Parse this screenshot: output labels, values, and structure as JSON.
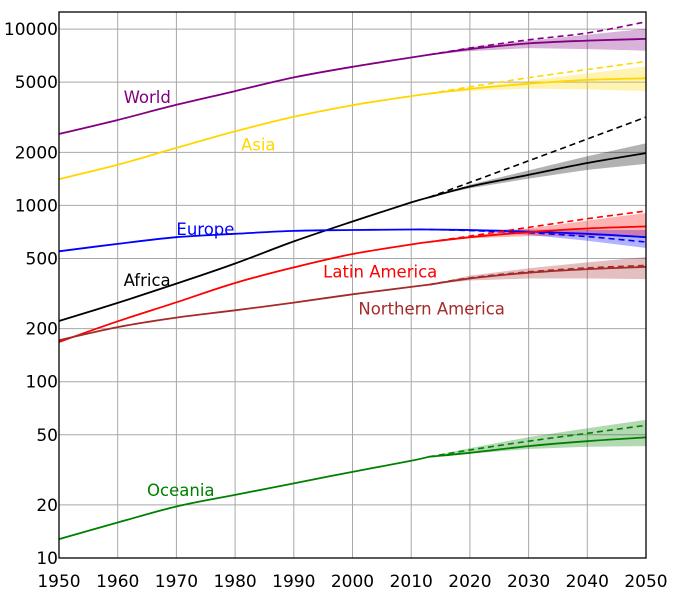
{
  "chart_data": {
    "type": "line",
    "title": "",
    "xlabel": "",
    "ylabel": "",
    "yscale": "log",
    "xlim": [
      1950,
      2050
    ],
    "ylim": [
      10,
      12500
    ],
    "grid": true,
    "legend": "inline labels",
    "x_ticks": [
      1950,
      1960,
      1970,
      1980,
      1990,
      2000,
      2010,
      2020,
      2030,
      2040,
      2050
    ],
    "y_ticks": [
      10,
      20,
      50,
      100,
      200,
      500,
      1000,
      2000,
      5000,
      10000
    ],
    "projection_start": 2013,
    "series": [
      {
        "name": "World",
        "label": "World",
        "color": "#800080",
        "label_at": [
          1961,
          3800
        ],
        "historical": {
          "x": [
            1950,
            1960,
            1970,
            1980,
            1990,
            2000,
            2010,
            2013
          ],
          "y": [
            2540,
            3050,
            3720,
            4450,
            5320,
            6110,
            6900,
            7150
          ]
        },
        "projection": {
          "x": [
            2013,
            2020,
            2030,
            2040,
            2050
          ],
          "y": [
            7150,
            7700,
            8300,
            8600,
            8800
          ]
        },
        "projection_high": {
          "x": [
            2013,
            2020,
            2030,
            2040,
            2050
          ],
          "y": [
            7150,
            7800,
            8700,
            9500,
            11000
          ]
        },
        "band_upper": {
          "x": [
            2013,
            2020,
            2030,
            2040,
            2050
          ],
          "y": [
            7150,
            7900,
            8600,
            9300,
            10050
          ]
        },
        "band_lower": {
          "x": [
            2013,
            2020,
            2030,
            2040,
            2050
          ],
          "y": [
            7150,
            7500,
            7800,
            7700,
            7540
          ]
        }
      },
      {
        "name": "Asia",
        "label": "Asia",
        "color": "#ffd700",
        "label_at": [
          1981,
          2050
        ],
        "historical": {
          "x": [
            1950,
            1960,
            1970,
            1980,
            1990,
            2000,
            2010,
            2013
          ],
          "y": [
            1410,
            1700,
            2120,
            2630,
            3180,
            3700,
            4170,
            4300
          ]
        },
        "projection": {
          "x": [
            2013,
            2020,
            2030,
            2040,
            2050
          ],
          "y": [
            4300,
            4580,
            4900,
            5150,
            5260
          ]
        },
        "projection_high": {
          "x": [
            2013,
            2020,
            2030,
            2040,
            2050
          ],
          "y": [
            4300,
            4700,
            5300,
            5900,
            6550
          ]
        },
        "band_upper": {
          "x": [
            2013,
            2020,
            2030,
            2040,
            2050
          ],
          "y": [
            4300,
            4650,
            5100,
            5600,
            6150
          ]
        },
        "band_lower": {
          "x": [
            2013,
            2020,
            2030,
            2040,
            2050
          ],
          "y": [
            4300,
            4450,
            4600,
            4550,
            4450
          ]
        }
      },
      {
        "name": "Africa",
        "label": "Africa",
        "color": "#000000",
        "label_at": [
          1961,
          350
        ],
        "historical": {
          "x": [
            1950,
            1960,
            1970,
            1980,
            1990,
            2000,
            2010,
            2013
          ],
          "y": [
            221,
            280,
            360,
            468,
            625,
            810,
            1040,
            1110
          ]
        },
        "projection": {
          "x": [
            2013,
            2020,
            2030,
            2040,
            2050
          ],
          "y": [
            1110,
            1280,
            1490,
            1740,
            1980
          ]
        },
        "projection_high": {
          "x": [
            2013,
            2020,
            2030,
            2040,
            2050
          ],
          "y": [
            1110,
            1350,
            1790,
            2380,
            3170
          ]
        },
        "band_upper": {
          "x": [
            2013,
            2020,
            2030,
            2040,
            2050
          ],
          "y": [
            1110,
            1310,
            1580,
            1900,
            2250
          ]
        },
        "band_lower": {
          "x": [
            2013,
            2020,
            2030,
            2040,
            2050
          ],
          "y": [
            1110,
            1250,
            1420,
            1590,
            1720
          ]
        }
      },
      {
        "name": "Europe",
        "label": "Europe",
        "color": "#0000ff",
        "label_at": [
          1970,
          680
        ],
        "historical": {
          "x": [
            1950,
            1960,
            1970,
            1980,
            1990,
            2000,
            2010,
            2013
          ],
          "y": [
            549,
            605,
            660,
            690,
            717,
            725,
            730,
            730
          ]
        },
        "projection": {
          "x": [
            2013,
            2020,
            2030,
            2040,
            2050
          ],
          "y": [
            730,
            725,
            710,
            690,
            660
          ]
        },
        "projection_high": {
          "x": [
            2013,
            2020,
            2030,
            2040,
            2050
          ],
          "y": [
            730,
            720,
            700,
            665,
            620
          ]
        },
        "band_upper": {
          "x": [
            2013,
            2020,
            2030,
            2040,
            2050
          ],
          "y": [
            730,
            730,
            730,
            728,
            725
          ]
        },
        "band_lower": {
          "x": [
            2013,
            2020,
            2030,
            2040,
            2050
          ],
          "y": [
            730,
            715,
            680,
            630,
            573
          ]
        }
      },
      {
        "name": "Latin America",
        "label": "Latin America",
        "color": "#ff0000",
        "label_at": [
          1995,
          390
        ],
        "historical": {
          "x": [
            1950,
            1960,
            1970,
            1980,
            1990,
            2000,
            2010,
            2013
          ],
          "y": [
            168,
            220,
            282,
            363,
            445,
            530,
            600,
            620
          ]
        },
        "projection": {
          "x": [
            2013,
            2020,
            2030,
            2040,
            2050
          ],
          "y": [
            620,
            660,
            705,
            740,
            760
          ]
        },
        "projection_high": {
          "x": [
            2013,
            2020,
            2030,
            2040,
            2050
          ],
          "y": [
            620,
            670,
            750,
            840,
            930
          ]
        },
        "band_upper": {
          "x": [
            2013,
            2020,
            2030,
            2040,
            2050
          ],
          "y": [
            620,
            670,
            740,
            820,
            905
          ]
        },
        "band_lower": {
          "x": [
            2013,
            2020,
            2030,
            2040,
            2050
          ],
          "y": [
            620,
            650,
            670,
            670,
            660
          ]
        }
      },
      {
        "name": "Northern America",
        "label": "Northern America",
        "color": "#a52a2a",
        "label_at": [
          2001,
          240
        ],
        "historical": {
          "x": [
            1950,
            1960,
            1970,
            1980,
            1990,
            2000,
            2010,
            2013
          ],
          "y": [
            172,
            204,
            231,
            254,
            281,
            313,
            345,
            355
          ]
        },
        "projection": {
          "x": [
            2013,
            2020,
            2030,
            2040,
            2050
          ],
          "y": [
            355,
            385,
            415,
            435,
            448
          ]
        },
        "projection_high": {
          "x": [
            2013,
            2020,
            2030,
            2040,
            2050
          ],
          "y": [
            355,
            388,
            420,
            442,
            457
          ]
        },
        "band_upper": {
          "x": [
            2013,
            2020,
            2030,
            2040,
            2050
          ],
          "y": [
            355,
            400,
            440,
            475,
            510
          ]
        },
        "band_lower": {
          "x": [
            2013,
            2020,
            2030,
            2040,
            2050
          ],
          "y": [
            355,
            375,
            385,
            385,
            382
          ]
        }
      },
      {
        "name": "Oceania",
        "label": "Oceania",
        "color": "#008000",
        "label_at": [
          1965,
          22.5
        ],
        "historical": {
          "x": [
            1950,
            1960,
            1970,
            1980,
            1990,
            2000,
            2010,
            2013
          ],
          "y": [
            12.8,
            15.9,
            19.6,
            22.8,
            26.5,
            30.8,
            35.6,
            37.5
          ]
        },
        "projection": {
          "x": [
            2013,
            2020,
            2030,
            2040,
            2050
          ],
          "y": [
            37.5,
            39.5,
            43.1,
            46,
            48.3
          ]
        },
        "projection_high": {
          "x": [
            2013,
            2020,
            2030,
            2040,
            2050
          ],
          "y": [
            37.5,
            41,
            46,
            51,
            56.6
          ]
        },
        "band_upper": {
          "x": [
            2013,
            2020,
            2030,
            2040,
            2050
          ],
          "y": [
            37.5,
            42,
            48.5,
            54.5,
            60.8
          ]
        },
        "band_lower": {
          "x": [
            2013,
            2020,
            2030,
            2040,
            2050
          ],
          "y": [
            37.5,
            39,
            41.5,
            42.8,
            43.1
          ]
        }
      }
    ]
  }
}
